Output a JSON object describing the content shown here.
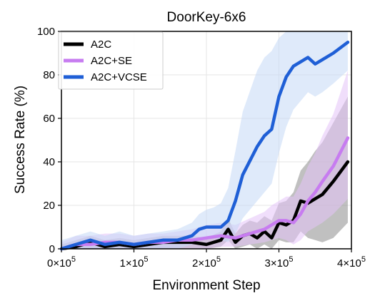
{
  "chart_data": {
    "type": "line",
    "title": "DoorKey-6x6",
    "xlabel": "Environment Step",
    "ylabel": "Success Rate (%)",
    "xlim": [
      0,
      400000
    ],
    "ylim": [
      0,
      100
    ],
    "grid": true,
    "legend_position": "top-left",
    "x_ticks": [
      {
        "value": 0,
        "label": "0×10",
        "exp": "5"
      },
      {
        "value": 100000,
        "label": "1×10",
        "exp": "5"
      },
      {
        "value": 200000,
        "label": "2×10",
        "exp": "5"
      },
      {
        "value": 300000,
        "label": "3×10",
        "exp": "5"
      },
      {
        "value": 400000,
        "label": "4×10",
        "exp": "5"
      }
    ],
    "y_ticks": [
      {
        "value": 0,
        "label": "0"
      },
      {
        "value": 20,
        "label": "20"
      },
      {
        "value": 40,
        "label": "40"
      },
      {
        "value": 60,
        "label": "60"
      },
      {
        "value": 80,
        "label": "80"
      },
      {
        "value": 100,
        "label": "100"
      }
    ],
    "series": [
      {
        "name": "A2C",
        "color": "#000000",
        "band_color": "#8c8c8c",
        "points": [
          [
            0,
            0
          ],
          [
            20000,
            1
          ],
          [
            40000,
            3
          ],
          [
            60000,
            1
          ],
          [
            80000,
            2
          ],
          [
            100000,
            1
          ],
          [
            120000,
            2
          ],
          [
            140000,
            3
          ],
          [
            160000,
            3
          ],
          [
            180000,
            3
          ],
          [
            200000,
            2
          ],
          [
            220000,
            4
          ],
          [
            230000,
            9
          ],
          [
            240000,
            3
          ],
          [
            250000,
            6
          ],
          [
            260000,
            7
          ],
          [
            270000,
            5
          ],
          [
            280000,
            8
          ],
          [
            290000,
            5
          ],
          [
            300000,
            12
          ],
          [
            310000,
            11
          ],
          [
            320000,
            13
          ],
          [
            330000,
            22
          ],
          [
            340000,
            21
          ],
          [
            350000,
            23
          ],
          [
            360000,
            25
          ],
          [
            375000,
            31
          ],
          [
            395000,
            40
          ]
        ],
        "upper": [
          [
            0,
            2
          ],
          [
            20000,
            4
          ],
          [
            40000,
            6
          ],
          [
            60000,
            4
          ],
          [
            80000,
            5
          ],
          [
            100000,
            4
          ],
          [
            120000,
            5
          ],
          [
            140000,
            6
          ],
          [
            160000,
            6
          ],
          [
            180000,
            6
          ],
          [
            200000,
            5
          ],
          [
            220000,
            8
          ],
          [
            230000,
            14
          ],
          [
            240000,
            7
          ],
          [
            250000,
            11
          ],
          [
            260000,
            13
          ],
          [
            270000,
            12
          ],
          [
            280000,
            15
          ],
          [
            290000,
            13
          ],
          [
            300000,
            21
          ],
          [
            310000,
            22
          ],
          [
            320000,
            26
          ],
          [
            330000,
            36
          ],
          [
            340000,
            40
          ],
          [
            350000,
            45
          ],
          [
            360000,
            49
          ],
          [
            375000,
            58
          ],
          [
            395000,
            70
          ]
        ],
        "lower": [
          [
            0,
            0
          ],
          [
            20000,
            0
          ],
          [
            40000,
            0
          ],
          [
            60000,
            0
          ],
          [
            80000,
            0
          ],
          [
            100000,
            0
          ],
          [
            120000,
            0
          ],
          [
            140000,
            0
          ],
          [
            160000,
            0
          ],
          [
            180000,
            0
          ],
          [
            200000,
            0
          ],
          [
            220000,
            1
          ],
          [
            230000,
            4
          ],
          [
            240000,
            0
          ],
          [
            250000,
            1
          ],
          [
            260000,
            2
          ],
          [
            270000,
            0
          ],
          [
            280000,
            2
          ],
          [
            290000,
            0
          ],
          [
            300000,
            4
          ],
          [
            310000,
            3
          ],
          [
            320000,
            3
          ],
          [
            330000,
            8
          ],
          [
            340000,
            5
          ],
          [
            350000,
            4
          ],
          [
            360000,
            3
          ],
          [
            375000,
            5
          ],
          [
            395000,
            12
          ]
        ]
      },
      {
        "name": "A2C+SE",
        "color": "#c77cf0",
        "band_color": "#e3c2f7",
        "points": [
          [
            0,
            0
          ],
          [
            20000,
            2
          ],
          [
            40000,
            2
          ],
          [
            60000,
            3
          ],
          [
            80000,
            3
          ],
          [
            100000,
            2
          ],
          [
            120000,
            3
          ],
          [
            140000,
            3
          ],
          [
            160000,
            4
          ],
          [
            180000,
            4
          ],
          [
            200000,
            5
          ],
          [
            220000,
            6
          ],
          [
            240000,
            5
          ],
          [
            260000,
            7
          ],
          [
            280000,
            9
          ],
          [
            290000,
            11
          ],
          [
            300000,
            13
          ],
          [
            310000,
            13
          ],
          [
            320000,
            12
          ],
          [
            330000,
            16
          ],
          [
            340000,
            22
          ],
          [
            350000,
            26
          ],
          [
            360000,
            31
          ],
          [
            375000,
            38
          ],
          [
            395000,
            51
          ]
        ],
        "upper": [
          [
            0,
            3
          ],
          [
            20000,
            6
          ],
          [
            40000,
            6
          ],
          [
            60000,
            7
          ],
          [
            80000,
            7
          ],
          [
            100000,
            6
          ],
          [
            120000,
            7
          ],
          [
            140000,
            7
          ],
          [
            160000,
            8
          ],
          [
            180000,
            9
          ],
          [
            200000,
            11
          ],
          [
            220000,
            12
          ],
          [
            240000,
            11
          ],
          [
            260000,
            14
          ],
          [
            280000,
            17
          ],
          [
            290000,
            20
          ],
          [
            300000,
            22
          ],
          [
            310000,
            24
          ],
          [
            320000,
            24
          ],
          [
            330000,
            30
          ],
          [
            340000,
            38
          ],
          [
            350000,
            44
          ],
          [
            360000,
            52
          ],
          [
            375000,
            62
          ],
          [
            395000,
            82
          ]
        ],
        "lower": [
          [
            0,
            0
          ],
          [
            20000,
            0
          ],
          [
            40000,
            0
          ],
          [
            60000,
            0
          ],
          [
            80000,
            0
          ],
          [
            100000,
            0
          ],
          [
            120000,
            0
          ],
          [
            140000,
            0
          ],
          [
            160000,
            0
          ],
          [
            180000,
            0
          ],
          [
            200000,
            0
          ],
          [
            220000,
            1
          ],
          [
            240000,
            1
          ],
          [
            260000,
            2
          ],
          [
            280000,
            3
          ],
          [
            290000,
            4
          ],
          [
            300000,
            5
          ],
          [
            310000,
            4
          ],
          [
            320000,
            2
          ],
          [
            330000,
            4
          ],
          [
            340000,
            8
          ],
          [
            350000,
            10
          ],
          [
            360000,
            12
          ],
          [
            375000,
            16
          ],
          [
            395000,
            23
          ]
        ]
      },
      {
        "name": "A2C+VCSE",
        "color": "#1f5fd6",
        "band_color": "#c5d9f6",
        "points": [
          [
            0,
            0
          ],
          [
            20000,
            2
          ],
          [
            40000,
            4
          ],
          [
            60000,
            2
          ],
          [
            80000,
            3
          ],
          [
            100000,
            2
          ],
          [
            120000,
            3
          ],
          [
            140000,
            4
          ],
          [
            160000,
            4
          ],
          [
            180000,
            6
          ],
          [
            190000,
            9
          ],
          [
            200000,
            10
          ],
          [
            210000,
            10
          ],
          [
            220000,
            10
          ],
          [
            230000,
            13
          ],
          [
            240000,
            22
          ],
          [
            250000,
            34
          ],
          [
            270000,
            47
          ],
          [
            280000,
            52
          ],
          [
            290000,
            55
          ],
          [
            300000,
            70
          ],
          [
            310000,
            79
          ],
          [
            320000,
            84
          ],
          [
            340000,
            88
          ],
          [
            350000,
            85
          ],
          [
            360000,
            87
          ],
          [
            375000,
            90
          ],
          [
            395000,
            95
          ]
        ],
        "upper": [
          [
            0,
            4
          ],
          [
            20000,
            6
          ],
          [
            40000,
            8
          ],
          [
            60000,
            6
          ],
          [
            80000,
            8
          ],
          [
            100000,
            6
          ],
          [
            120000,
            7
          ],
          [
            140000,
            8
          ],
          [
            160000,
            9
          ],
          [
            180000,
            12
          ],
          [
            190000,
            16
          ],
          [
            200000,
            18
          ],
          [
            210000,
            19
          ],
          [
            220000,
            21
          ],
          [
            230000,
            28
          ],
          [
            240000,
            45
          ],
          [
            250000,
            63
          ],
          [
            270000,
            82
          ],
          [
            280000,
            88
          ],
          [
            290000,
            91
          ],
          [
            300000,
            97
          ],
          [
            310000,
            100
          ],
          [
            320000,
            100
          ],
          [
            340000,
            100
          ],
          [
            350000,
            100
          ],
          [
            360000,
            100
          ],
          [
            375000,
            100
          ],
          [
            395000,
            100
          ]
        ],
        "lower": [
          [
            0,
            0
          ],
          [
            20000,
            0
          ],
          [
            40000,
            0
          ],
          [
            60000,
            0
          ],
          [
            80000,
            0
          ],
          [
            100000,
            0
          ],
          [
            120000,
            0
          ],
          [
            140000,
            0
          ],
          [
            160000,
            0
          ],
          [
            180000,
            2
          ],
          [
            190000,
            4
          ],
          [
            200000,
            5
          ],
          [
            210000,
            5
          ],
          [
            220000,
            4
          ],
          [
            230000,
            3
          ],
          [
            240000,
            7
          ],
          [
            250000,
            14
          ],
          [
            270000,
            22
          ],
          [
            280000,
            26
          ],
          [
            290000,
            30
          ],
          [
            300000,
            44
          ],
          [
            310000,
            56
          ],
          [
            320000,
            64
          ],
          [
            340000,
            72
          ],
          [
            350000,
            70
          ],
          [
            360000,
            72
          ],
          [
            375000,
            76
          ],
          [
            395000,
            82
          ]
        ]
      }
    ]
  }
}
